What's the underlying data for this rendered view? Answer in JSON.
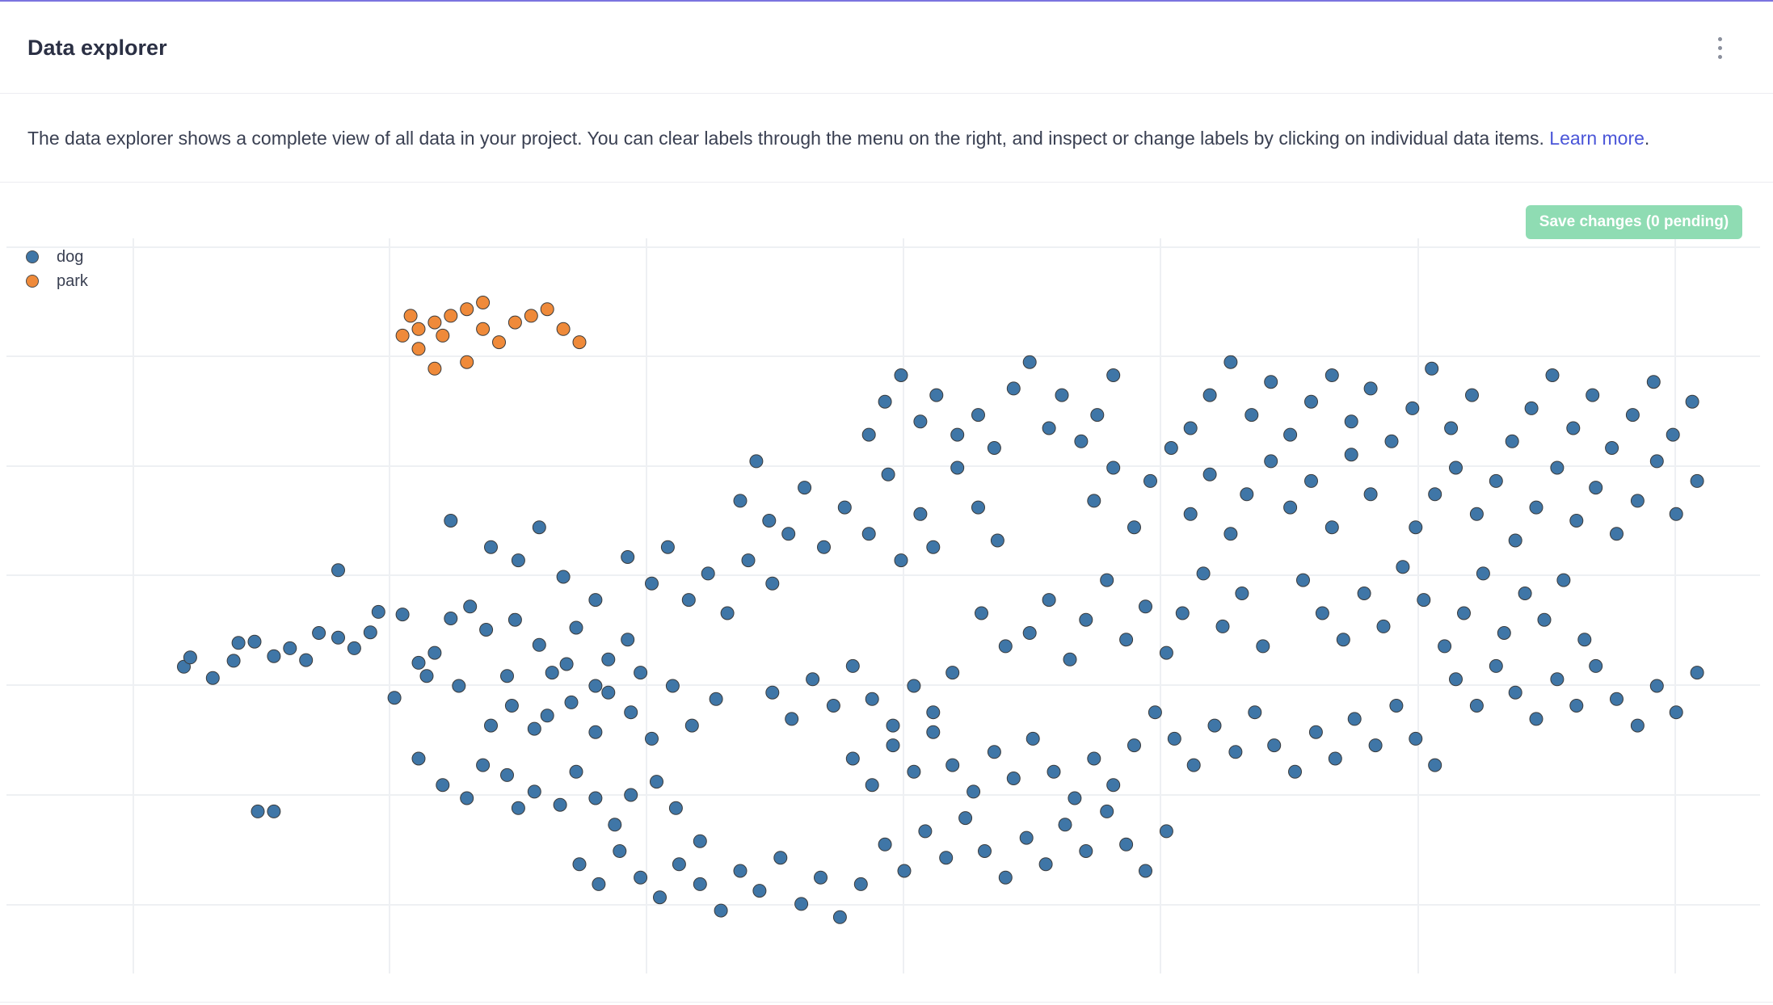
{
  "header": {
    "title": "Data explorer",
    "menu_icon": "kebab-menu-icon"
  },
  "description": {
    "text": "The data explorer shows a complete view of all data in your project. You can clear labels through the menu on the right, and inspect or change labels by clicking on individual data items.",
    "link_text": "Learn more",
    "suffix": "."
  },
  "toolbar": {
    "save_label": "Save changes (0 pending)"
  },
  "colors": {
    "dog": "#3f76a7",
    "park": "#ef8a3a",
    "save_button": "#8fdcb3",
    "link": "#4a55d8"
  },
  "legend": {
    "items": [
      {
        "label": "dog",
        "color": "#3f76a7"
      },
      {
        "label": "park",
        "color": "#ef8a3a"
      }
    ],
    "position": "top-left"
  },
  "chart_data": {
    "type": "scatter",
    "grid": true,
    "xlim": [
      0,
      1
    ],
    "ylim": [
      0,
      1
    ],
    "series": [
      {
        "name": "dog",
        "color": "#3f76a7",
        "points": [
          [
            0.054,
            0.419
          ],
          [
            0.058,
            0.433
          ],
          [
            0.072,
            0.402
          ],
          [
            0.085,
            0.428
          ],
          [
            0.088,
            0.455
          ],
          [
            0.098,
            0.457
          ],
          [
            0.11,
            0.435
          ],
          [
            0.12,
            0.447
          ],
          [
            0.13,
            0.429
          ],
          [
            0.138,
            0.47
          ],
          [
            0.15,
            0.463
          ],
          [
            0.16,
            0.447
          ],
          [
            0.17,
            0.471
          ],
          [
            0.175,
            0.502
          ],
          [
            0.19,
            0.498
          ],
          [
            0.2,
            0.425
          ],
          [
            0.21,
            0.44
          ],
          [
            0.22,
            0.492
          ],
          [
            0.232,
            0.51
          ],
          [
            0.242,
            0.475
          ],
          [
            0.255,
            0.405
          ],
          [
            0.26,
            0.49
          ],
          [
            0.275,
            0.452
          ],
          [
            0.283,
            0.41
          ],
          [
            0.292,
            0.423
          ],
          [
            0.298,
            0.478
          ],
          [
            0.31,
            0.39
          ],
          [
            0.318,
            0.43
          ],
          [
            0.33,
            0.46
          ],
          [
            0.338,
            0.41
          ],
          [
            0.185,
            0.372
          ],
          [
            0.205,
            0.405
          ],
          [
            0.225,
            0.39
          ],
          [
            0.245,
            0.33
          ],
          [
            0.258,
            0.36
          ],
          [
            0.272,
            0.325
          ],
          [
            0.28,
            0.345
          ],
          [
            0.295,
            0.365
          ],
          [
            0.31,
            0.32
          ],
          [
            0.318,
            0.38
          ],
          [
            0.332,
            0.35
          ],
          [
            0.345,
            0.31
          ],
          [
            0.358,
            0.39
          ],
          [
            0.37,
            0.33
          ],
          [
            0.385,
            0.37
          ],
          [
            0.2,
            0.28
          ],
          [
            0.215,
            0.24
          ],
          [
            0.23,
            0.22
          ],
          [
            0.24,
            0.27
          ],
          [
            0.255,
            0.255
          ],
          [
            0.262,
            0.205
          ],
          [
            0.272,
            0.23
          ],
          [
            0.288,
            0.21
          ],
          [
            0.298,
            0.26
          ],
          [
            0.31,
            0.22
          ],
          [
            0.322,
            0.18
          ],
          [
            0.332,
            0.225
          ],
          [
            0.348,
            0.245
          ],
          [
            0.36,
            0.205
          ],
          [
            0.375,
            0.155
          ],
          [
            0.15,
            0.565
          ],
          [
            0.22,
            0.64
          ],
          [
            0.245,
            0.6
          ],
          [
            0.262,
            0.58
          ],
          [
            0.275,
            0.63
          ],
          [
            0.29,
            0.555
          ],
          [
            0.31,
            0.52
          ],
          [
            0.33,
            0.585
          ],
          [
            0.345,
            0.545
          ],
          [
            0.355,
            0.6
          ],
          [
            0.368,
            0.52
          ],
          [
            0.38,
            0.56
          ],
          [
            0.392,
            0.5
          ],
          [
            0.405,
            0.58
          ],
          [
            0.42,
            0.545
          ],
          [
            0.4,
            0.67
          ],
          [
            0.41,
            0.73
          ],
          [
            0.418,
            0.64
          ],
          [
            0.43,
            0.62
          ],
          [
            0.44,
            0.69
          ],
          [
            0.452,
            0.6
          ],
          [
            0.465,
            0.66
          ],
          [
            0.48,
            0.62
          ],
          [
            0.492,
            0.71
          ],
          [
            0.5,
            0.58
          ],
          [
            0.512,
            0.65
          ],
          [
            0.52,
            0.6
          ],
          [
            0.535,
            0.72
          ],
          [
            0.548,
            0.66
          ],
          [
            0.56,
            0.61
          ],
          [
            0.48,
            0.77
          ],
          [
            0.49,
            0.82
          ],
          [
            0.5,
            0.86
          ],
          [
            0.512,
            0.79
          ],
          [
            0.522,
            0.83
          ],
          [
            0.535,
            0.77
          ],
          [
            0.548,
            0.8
          ],
          [
            0.558,
            0.75
          ],
          [
            0.57,
            0.84
          ],
          [
            0.58,
            0.88
          ],
          [
            0.592,
            0.78
          ],
          [
            0.6,
            0.83
          ],
          [
            0.612,
            0.76
          ],
          [
            0.622,
            0.8
          ],
          [
            0.632,
            0.86
          ],
          [
            0.55,
            0.5
          ],
          [
            0.565,
            0.45
          ],
          [
            0.58,
            0.47
          ],
          [
            0.592,
            0.52
          ],
          [
            0.605,
            0.43
          ],
          [
            0.615,
            0.49
          ],
          [
            0.628,
            0.55
          ],
          [
            0.64,
            0.46
          ],
          [
            0.652,
            0.51
          ],
          [
            0.665,
            0.44
          ],
          [
            0.675,
            0.5
          ],
          [
            0.688,
            0.56
          ],
          [
            0.7,
            0.48
          ],
          [
            0.712,
            0.53
          ],
          [
            0.725,
            0.45
          ],
          [
            0.62,
            0.67
          ],
          [
            0.632,
            0.72
          ],
          [
            0.645,
            0.63
          ],
          [
            0.655,
            0.7
          ],
          [
            0.668,
            0.75
          ],
          [
            0.68,
            0.65
          ],
          [
            0.692,
            0.71
          ],
          [
            0.705,
            0.62
          ],
          [
            0.715,
            0.68
          ],
          [
            0.73,
            0.73
          ],
          [
            0.742,
            0.66
          ],
          [
            0.755,
            0.7
          ],
          [
            0.768,
            0.63
          ],
          [
            0.78,
            0.74
          ],
          [
            0.792,
            0.68
          ],
          [
            0.68,
            0.78
          ],
          [
            0.692,
            0.83
          ],
          [
            0.705,
            0.88
          ],
          [
            0.718,
            0.8
          ],
          [
            0.73,
            0.85
          ],
          [
            0.742,
            0.77
          ],
          [
            0.755,
            0.82
          ],
          [
            0.768,
            0.86
          ],
          [
            0.78,
            0.79
          ],
          [
            0.792,
            0.84
          ],
          [
            0.805,
            0.76
          ],
          [
            0.818,
            0.81
          ],
          [
            0.83,
            0.87
          ],
          [
            0.842,
            0.78
          ],
          [
            0.855,
            0.83
          ],
          [
            0.75,
            0.55
          ],
          [
            0.762,
            0.5
          ],
          [
            0.775,
            0.46
          ],
          [
            0.788,
            0.53
          ],
          [
            0.8,
            0.48
          ],
          [
            0.812,
            0.57
          ],
          [
            0.825,
            0.52
          ],
          [
            0.838,
            0.45
          ],
          [
            0.85,
            0.5
          ],
          [
            0.862,
            0.56
          ],
          [
            0.875,
            0.47
          ],
          [
            0.888,
            0.53
          ],
          [
            0.9,
            0.49
          ],
          [
            0.912,
            0.55
          ],
          [
            0.925,
            0.46
          ],
          [
            0.82,
            0.63
          ],
          [
            0.832,
            0.68
          ],
          [
            0.845,
            0.72
          ],
          [
            0.858,
            0.65
          ],
          [
            0.87,
            0.7
          ],
          [
            0.882,
            0.61
          ],
          [
            0.895,
            0.66
          ],
          [
            0.908,
            0.72
          ],
          [
            0.92,
            0.64
          ],
          [
            0.932,
            0.69
          ],
          [
            0.945,
            0.62
          ],
          [
            0.958,
            0.67
          ],
          [
            0.97,
            0.73
          ],
          [
            0.982,
            0.65
          ],
          [
            0.995,
            0.7
          ],
          [
            0.88,
            0.76
          ],
          [
            0.892,
            0.81
          ],
          [
            0.905,
            0.86
          ],
          [
            0.918,
            0.78
          ],
          [
            0.93,
            0.83
          ],
          [
            0.942,
            0.75
          ],
          [
            0.955,
            0.8
          ],
          [
            0.968,
            0.85
          ],
          [
            0.98,
            0.77
          ],
          [
            0.992,
            0.82
          ],
          [
            0.3,
            0.12
          ],
          [
            0.312,
            0.09
          ],
          [
            0.325,
            0.14
          ],
          [
            0.338,
            0.1
          ],
          [
            0.35,
            0.07
          ],
          [
            0.362,
            0.12
          ],
          [
            0.375,
            0.09
          ],
          [
            0.388,
            0.05
          ],
          [
            0.4,
            0.11
          ],
          [
            0.412,
            0.08
          ],
          [
            0.425,
            0.13
          ],
          [
            0.438,
            0.06
          ],
          [
            0.45,
            0.1
          ],
          [
            0.462,
            0.04
          ],
          [
            0.475,
            0.09
          ],
          [
            0.49,
            0.15
          ],
          [
            0.502,
            0.11
          ],
          [
            0.515,
            0.17
          ],
          [
            0.528,
            0.13
          ],
          [
            0.54,
            0.19
          ],
          [
            0.552,
            0.14
          ],
          [
            0.565,
            0.1
          ],
          [
            0.578,
            0.16
          ],
          [
            0.59,
            0.12
          ],
          [
            0.602,
            0.18
          ],
          [
            0.615,
            0.14
          ],
          [
            0.628,
            0.2
          ],
          [
            0.64,
            0.15
          ],
          [
            0.652,
            0.11
          ],
          [
            0.665,
            0.17
          ],
          [
            0.47,
            0.28
          ],
          [
            0.482,
            0.24
          ],
          [
            0.495,
            0.3
          ],
          [
            0.508,
            0.26
          ],
          [
            0.52,
            0.32
          ],
          [
            0.532,
            0.27
          ],
          [
            0.545,
            0.23
          ],
          [
            0.558,
            0.29
          ],
          [
            0.57,
            0.25
          ],
          [
            0.582,
            0.31
          ],
          [
            0.595,
            0.26
          ],
          [
            0.608,
            0.22
          ],
          [
            0.62,
            0.28
          ],
          [
            0.632,
            0.24
          ],
          [
            0.645,
            0.3
          ],
          [
            0.658,
            0.35
          ],
          [
            0.67,
            0.31
          ],
          [
            0.682,
            0.27
          ],
          [
            0.695,
            0.33
          ],
          [
            0.708,
            0.29
          ],
          [
            0.72,
            0.35
          ],
          [
            0.732,
            0.3
          ],
          [
            0.745,
            0.26
          ],
          [
            0.758,
            0.32
          ],
          [
            0.77,
            0.28
          ],
          [
            0.782,
            0.34
          ],
          [
            0.795,
            0.3
          ],
          [
            0.808,
            0.36
          ],
          [
            0.82,
            0.31
          ],
          [
            0.832,
            0.27
          ],
          [
            0.845,
            0.4
          ],
          [
            0.858,
            0.36
          ],
          [
            0.87,
            0.42
          ],
          [
            0.882,
            0.38
          ],
          [
            0.895,
            0.34
          ],
          [
            0.908,
            0.4
          ],
          [
            0.92,
            0.36
          ],
          [
            0.932,
            0.42
          ],
          [
            0.945,
            0.37
          ],
          [
            0.958,
            0.33
          ],
          [
            0.97,
            0.39
          ],
          [
            0.982,
            0.35
          ],
          [
            0.995,
            0.41
          ],
          [
            0.42,
            0.38
          ],
          [
            0.432,
            0.34
          ],
          [
            0.445,
            0.4
          ],
          [
            0.458,
            0.36
          ],
          [
            0.47,
            0.42
          ],
          [
            0.482,
            0.37
          ],
          [
            0.495,
            0.33
          ],
          [
            0.508,
            0.39
          ],
          [
            0.52,
            0.35
          ],
          [
            0.532,
            0.41
          ],
          [
            0.1,
            0.2
          ],
          [
            0.11,
            0.2
          ]
        ]
      },
      {
        "name": "park",
        "color": "#ef8a3a",
        "points": [
          [
            0.19,
            0.92
          ],
          [
            0.2,
            0.93
          ],
          [
            0.21,
            0.94
          ],
          [
            0.2,
            0.9
          ],
          [
            0.22,
            0.95
          ],
          [
            0.23,
            0.96
          ],
          [
            0.24,
            0.93
          ],
          [
            0.25,
            0.91
          ],
          [
            0.23,
            0.88
          ],
          [
            0.21,
            0.87
          ],
          [
            0.27,
            0.95
          ],
          [
            0.28,
            0.96
          ],
          [
            0.29,
            0.93
          ],
          [
            0.3,
            0.91
          ],
          [
            0.26,
            0.94
          ],
          [
            0.24,
            0.97
          ],
          [
            0.215,
            0.92
          ],
          [
            0.195,
            0.95
          ]
        ]
      }
    ]
  }
}
